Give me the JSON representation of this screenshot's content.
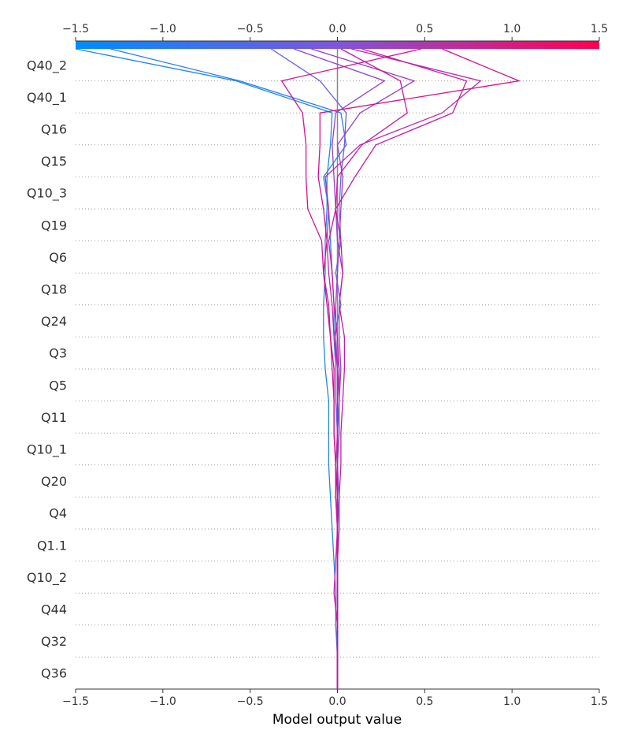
{
  "chart_data": {
    "type": "line",
    "subtype": "decision_plot",
    "title": "",
    "xlabel": "Model output value",
    "ylabel": "",
    "xlim": [
      -1.5,
      1.5
    ],
    "xticks": [
      -1.5,
      -1.0,
      -0.5,
      0.0,
      0.5,
      1.0,
      1.5
    ],
    "xtick_labels": [
      "−1.5",
      "−1.0",
      "−0.5",
      "0.0",
      "0.5",
      "1.0",
      "1.5"
    ],
    "base_value": 0.0,
    "grid": "dotted horizontal",
    "colorbar": {
      "position": "top",
      "range": [
        -1.5,
        1.5
      ],
      "colors": [
        "#008bfb",
        "#ff0051"
      ]
    },
    "features": [
      "Q40_2",
      "Q40_1",
      "Q16",
      "Q15",
      "Q10_3",
      "Q19",
      "Q6",
      "Q18",
      "Q24",
      "Q3",
      "Q5",
      "Q11",
      "Q10_1",
      "Q20",
      "Q4",
      "Q1.1",
      "Q10_2",
      "Q44",
      "Q32",
      "Q36"
    ],
    "series": [
      {
        "color": "#1e88e5",
        "values": [
          -1.5,
          -0.58,
          -0.03,
          -0.04,
          -0.06,
          -0.06,
          -0.07,
          -0.07,
          -0.08,
          -0.08,
          -0.07,
          -0.05,
          -0.05,
          -0.05,
          -0.04,
          -0.03,
          -0.02,
          -0.01,
          -0.01,
          0.0,
          0.0
        ]
      },
      {
        "color": "#2b7fe6",
        "values": [
          -1.3,
          -0.56,
          0.02,
          0.05,
          -0.08,
          -0.05,
          -0.04,
          -0.03,
          -0.02,
          -0.02,
          -0.01,
          -0.01,
          0.0,
          0.0,
          0.0,
          0.0,
          0.0,
          0.0,
          0.0,
          0.0,
          0.0
        ]
      },
      {
        "color": "#6a5fd8",
        "values": [
          -0.38,
          -0.1,
          0.05,
          0.04,
          0.02,
          0.01,
          0.02,
          -0.01,
          0.02,
          -0.02,
          0.01,
          0.01,
          0.0,
          0.0,
          0.01,
          0.0,
          0.0,
          0.0,
          0.0,
          0.0,
          0.0
        ]
      },
      {
        "color": "#8c45c8",
        "values": [
          -0.25,
          0.27,
          -0.01,
          -0.03,
          -0.02,
          -0.01,
          0.0,
          0.03,
          0.01,
          0.01,
          0.02,
          0.01,
          0.01,
          0.0,
          0.0,
          0.0,
          0.0,
          0.0,
          0.0,
          0.0,
          0.0
        ]
      },
      {
        "color": "#9b3dc2",
        "values": [
          -0.15,
          0.44,
          0.13,
          0.0,
          0.03,
          0.02,
          0.01,
          0.0,
          -0.01,
          -0.01,
          0.0,
          0.0,
          0.0,
          0.0,
          0.0,
          0.0,
          0.0,
          0.0,
          0.0,
          0.0,
          0.0
        ]
      },
      {
        "color": "#b82aab",
        "values": [
          0.08,
          0.82,
          0.6,
          0.13,
          -0.07,
          -0.05,
          -0.06,
          -0.05,
          -0.03,
          -0.02,
          0.0,
          0.0,
          0.0,
          -0.01,
          -0.01,
          0.0,
          0.0,
          0.0,
          0.0,
          0.0,
          0.0
        ]
      },
      {
        "color": "#c01fa0",
        "values": [
          0.14,
          0.74,
          0.66,
          0.22,
          0.1,
          -0.01,
          0.02,
          0.03,
          0.01,
          0.04,
          0.04,
          0.03,
          0.02,
          0.02,
          0.01,
          0.01,
          0.0,
          0.0,
          0.0,
          0.0,
          0.0
        ]
      },
      {
        "color": "#c71b9b",
        "values": [
          0.02,
          0.36,
          0.4,
          0.14,
          0.0,
          -0.01,
          -0.05,
          -0.03,
          -0.02,
          0.0,
          0.01,
          0.0,
          0.0,
          0.0,
          0.0,
          0.0,
          -0.01,
          -0.02,
          0.0,
          0.0,
          0.0
        ]
      },
      {
        "color": "#cc1696",
        "values": [
          0.48,
          -0.32,
          -0.2,
          -0.18,
          -0.18,
          -0.17,
          -0.09,
          -0.08,
          -0.06,
          -0.04,
          -0.03,
          -0.02,
          -0.02,
          -0.01,
          -0.01,
          0.0,
          0.0,
          0.0,
          0.0,
          0.0,
          0.0
        ]
      },
      {
        "color": "#d01192",
        "values": [
          0.6,
          1.04,
          -0.1,
          -0.1,
          -0.11,
          -0.08,
          -0.06,
          -0.08,
          -0.05,
          -0.04,
          -0.02,
          -0.02,
          -0.02,
          -0.01,
          0.0,
          0.0,
          0.0,
          0.0,
          0.0,
          0.0,
          0.0
        ]
      }
    ]
  }
}
